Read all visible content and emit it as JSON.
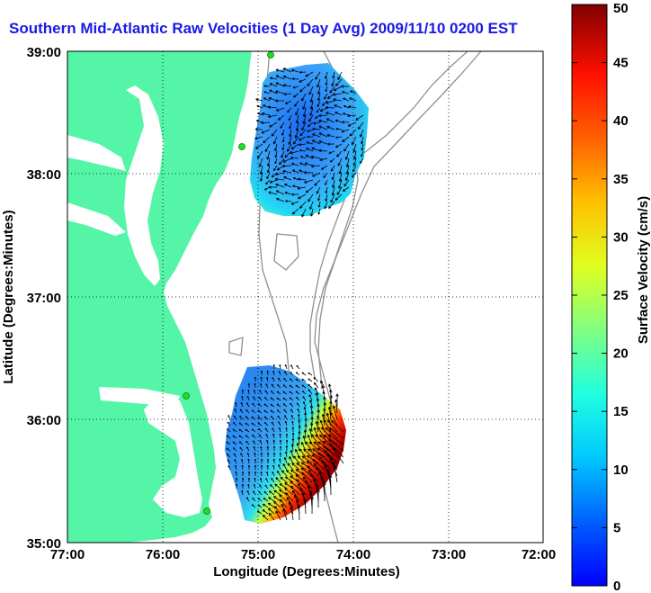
{
  "title": "Southern Mid-Atlantic Raw Velocities (1 Day Avg) 2009/11/10 0200 EST",
  "map": {
    "xlabel": "Longitude (Degrees:Minutes)",
    "ylabel": "Latitude (Degrees:Minutes)",
    "x_ticks": [
      "77:00",
      "76:00",
      "75:00",
      "74:00",
      "73:00",
      "72:00"
    ],
    "y_ticks": [
      "39:00",
      "38:00",
      "37:00",
      "36:00",
      "35:00"
    ],
    "lon_range": [
      -77,
      -72
    ],
    "lat_range": [
      35,
      39
    ],
    "grid": "dotted",
    "land_color": "#55f5a8",
    "contour_color": "#909090",
    "station_color": "#22dd22"
  },
  "colorbar": {
    "label": "Surface Velocity (cm/s)",
    "range": [
      0,
      50
    ],
    "ticks": [
      "0",
      "5",
      "10",
      "15",
      "20",
      "25",
      "30",
      "35",
      "40",
      "45",
      "50"
    ],
    "colormap": "jet"
  }
}
